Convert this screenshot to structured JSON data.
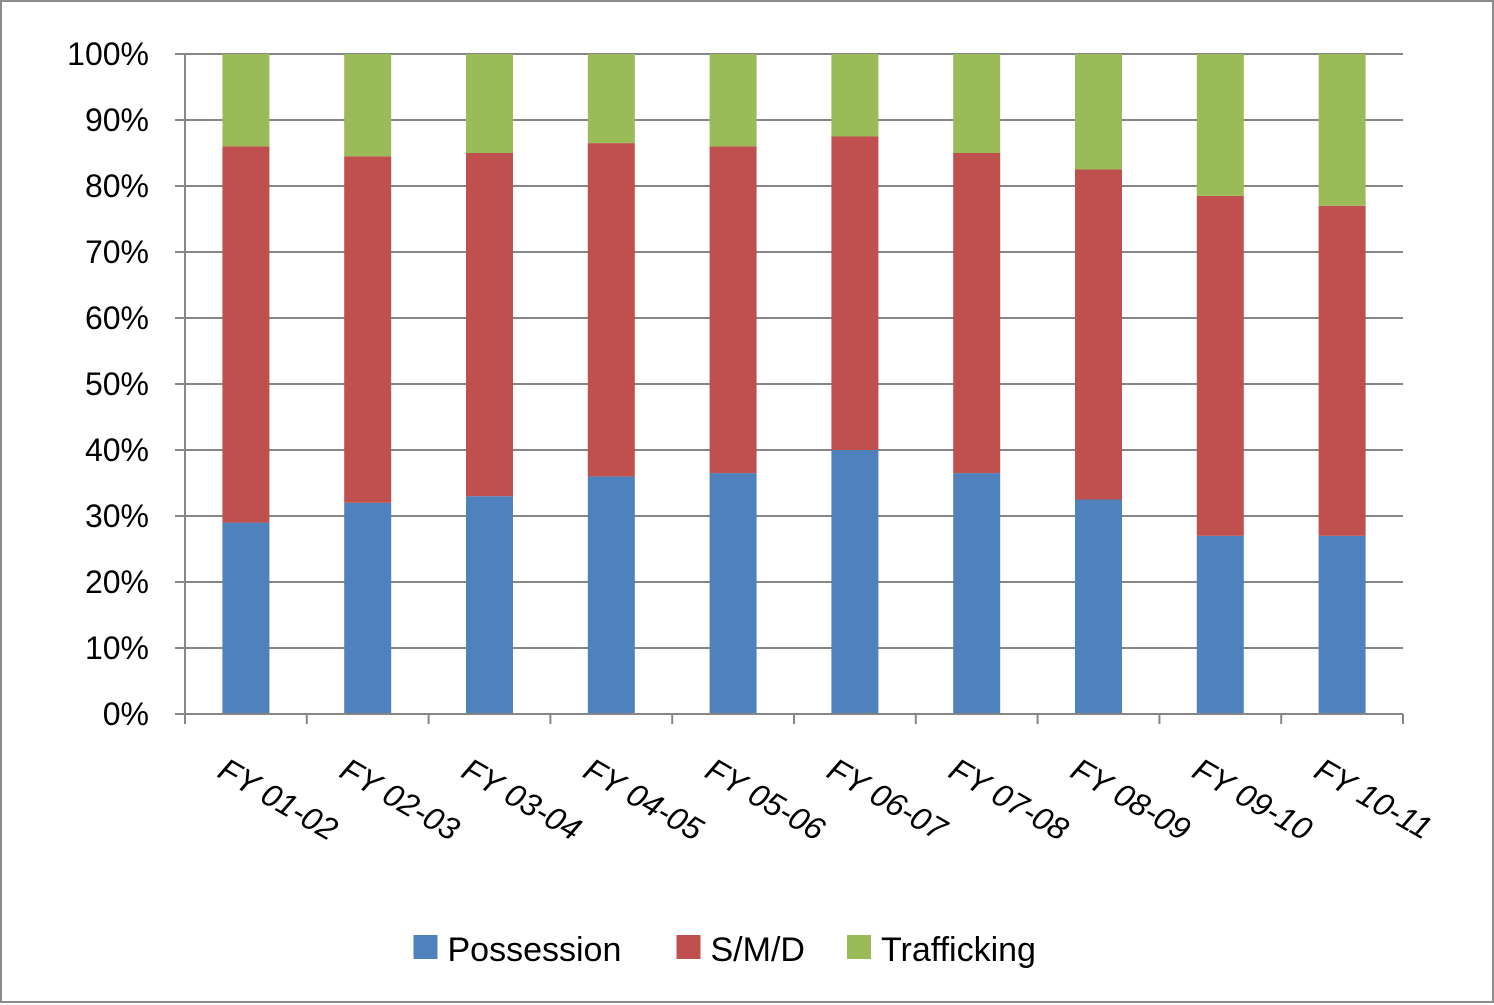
{
  "chart_data": {
    "type": "bar",
    "stacked": true,
    "title": "",
    "xlabel": "",
    "ylabel": "",
    "ylim": [
      0,
      100
    ],
    "yticks": [
      "0%",
      "10%",
      "20%",
      "30%",
      "40%",
      "50%",
      "60%",
      "70%",
      "80%",
      "90%",
      "100%"
    ],
    "grid": true,
    "legend_position": "bottom",
    "categories": [
      "FY 01-02",
      "FY 02-03",
      "FY 03-04",
      "FY 04-05",
      "FY 05-06",
      "FY 06-07",
      "FY 07-08",
      "FY 08-09",
      "FY 09-10",
      "FY 10-11"
    ],
    "series": [
      {
        "name": "Possession",
        "color": "#4f81bd",
        "values": [
          29,
          32,
          33,
          36,
          36.5,
          40,
          36.5,
          32.5,
          27,
          27
        ]
      },
      {
        "name": "S/M/D",
        "color": "#c0504d",
        "values": [
          57,
          52.5,
          52,
          50.5,
          49.5,
          47.5,
          48.5,
          50,
          51.5,
          50
        ]
      },
      {
        "name": "Trafficking",
        "color": "#9bbb59",
        "values": [
          14,
          15.5,
          15,
          13.5,
          14,
          12.5,
          15,
          17.5,
          21.5,
          23
        ]
      }
    ]
  }
}
